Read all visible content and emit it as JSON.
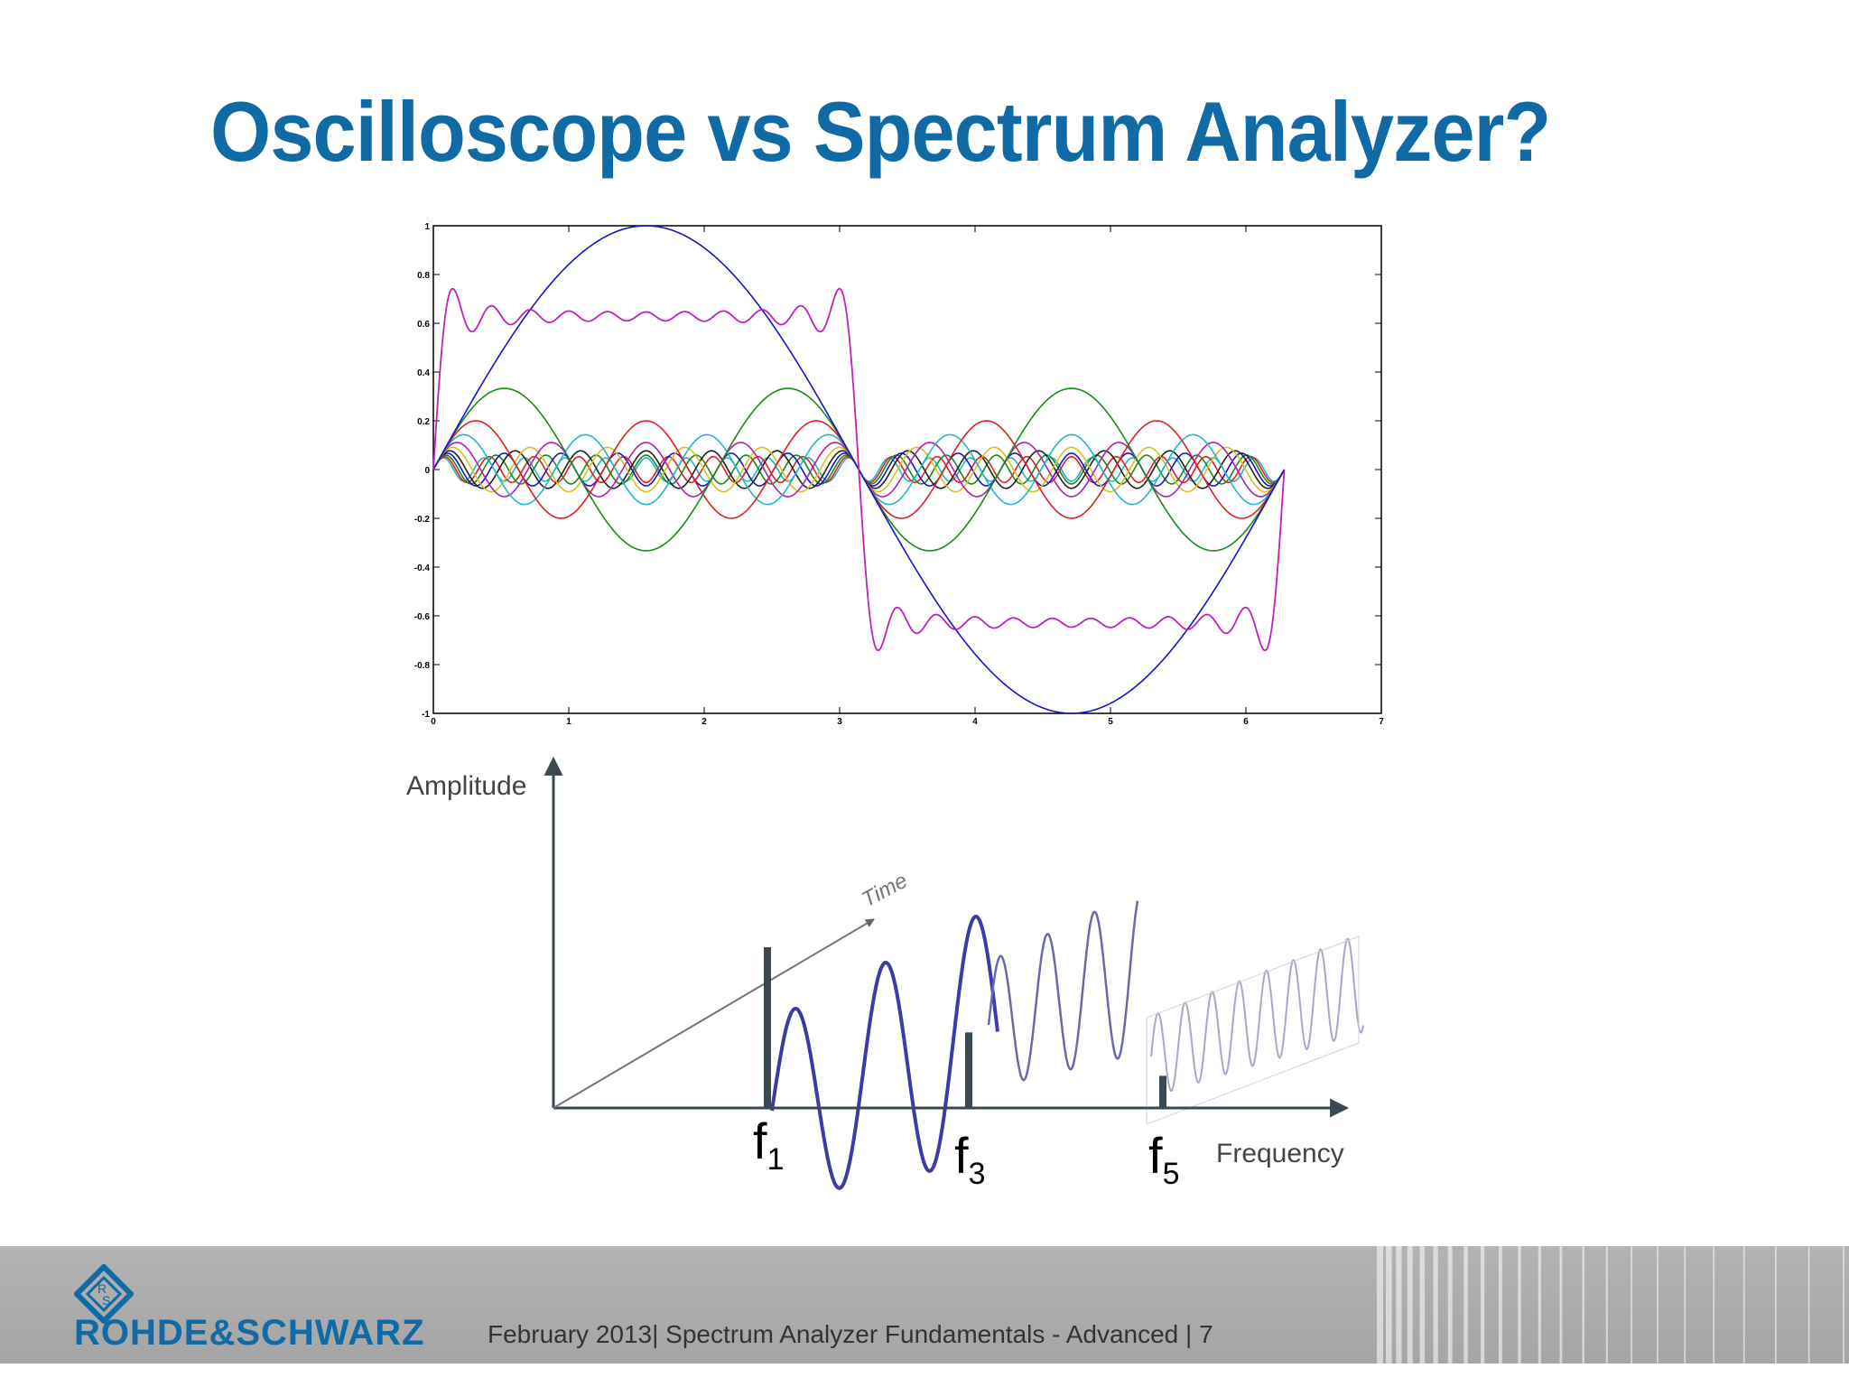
{
  "slide": {
    "title": "Oscilloscope vs Spectrum Analyzer?"
  },
  "chart_data": [
    {
      "type": "line",
      "title": "",
      "xlabel": "",
      "ylabel": "",
      "xlim": [
        0,
        7
      ],
      "ylim": [
        -1,
        1
      ],
      "x_ticks": [
        "0",
        "1",
        "2",
        "3",
        "4",
        "5",
        "6",
        "7"
      ],
      "y_ticks": [
        "1",
        "0.8",
        "0.6",
        "0.4",
        "0.2",
        "0",
        "-0.2",
        "-0.4",
        "-0.6",
        "-0.8",
        "-1"
      ],
      "grid": false,
      "x_range_of_series": [
        0,
        6.283
      ],
      "series": [
        {
          "harmonic": 1,
          "amplitude": 1.0,
          "color": "#1515c8"
        },
        {
          "harmonic": 3,
          "amplitude": 0.333,
          "color": "#1a8a1a"
        },
        {
          "harmonic": 5,
          "amplitude": 0.2,
          "color": "#e02020"
        },
        {
          "harmonic": 7,
          "amplitude": 0.143,
          "color": "#20b8c8"
        },
        {
          "harmonic": 9,
          "amplitude": 0.111,
          "color": "#b020b0"
        },
        {
          "harmonic": 11,
          "amplitude": 0.091,
          "color": "#d8c020"
        },
        {
          "harmonic": 13,
          "amplitude": 0.077,
          "color": "#202020"
        },
        {
          "harmonic": 15,
          "amplitude": 0.067,
          "color": "#1515c8"
        },
        {
          "harmonic": 17,
          "amplitude": 0.059,
          "color": "#1a8a1a"
        },
        {
          "harmonic": 19,
          "amplitude": 0.053,
          "color": "#e02020"
        },
        {
          "harmonic": 21,
          "amplitude": 0.048,
          "color": "#20b8c8"
        },
        {
          "harmonic": "sum of odd harmonics 1–21",
          "approx": "square wave ±0.8",
          "color": "#c020c0"
        }
      ]
    },
    {
      "type": "bar",
      "ylabel": "Amplitude",
      "xlabel": "Frequency",
      "time_axis_label": "Time",
      "categories": [
        "f1",
        "f3",
        "f5"
      ],
      "category_labels": [
        {
          "base": "f",
          "sub": "1"
        },
        {
          "base": "f",
          "sub": "3"
        },
        {
          "base": "f",
          "sub": "5"
        }
      ],
      "values": [
        1.0,
        0.47,
        0.2
      ],
      "bar_color": "#3a4a52",
      "wave_colors": [
        "#3c3ca8",
        "#6a6aa8",
        "#a8a8c8"
      ]
    }
  ],
  "footer": {
    "logo_text": "ROHDE&SCHWARZ",
    "info": "February 2013|  Spectrum Analyzer Fundamentals - Advanced  |  7",
    "logo_letters": [
      "R",
      "S"
    ]
  }
}
